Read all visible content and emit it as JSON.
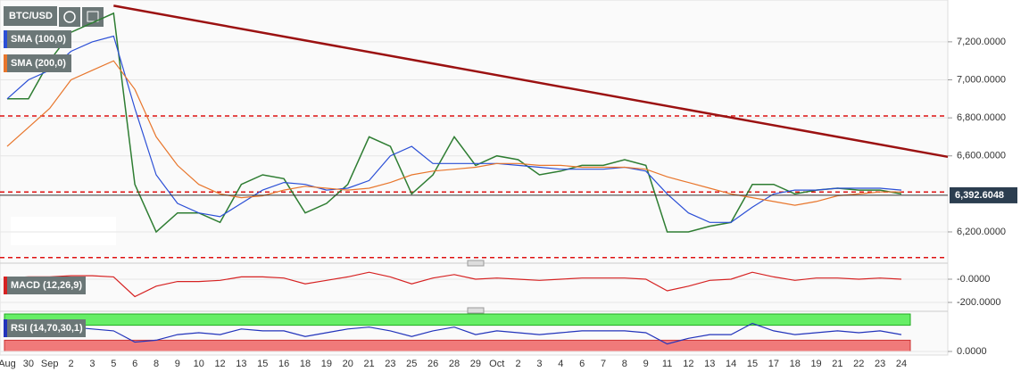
{
  "chart_data": [
    {
      "type": "line",
      "title": "BTC/USD",
      "categories": [
        "Aug",
        "30",
        "Sep",
        "2",
        "3",
        "5",
        "6",
        "8",
        "9",
        "10",
        "12",
        "13",
        "15",
        "16",
        "18",
        "19",
        "20",
        "21",
        "23",
        "25",
        "26",
        "28",
        "29",
        "Oct",
        "2",
        "3",
        "4",
        "6",
        "7",
        "8",
        "9",
        "11",
        "12",
        "13",
        "14",
        "15",
        "17",
        "18",
        "19",
        "21",
        "22",
        "23",
        "24"
      ],
      "series": [
        {
          "name": "BTC/USD",
          "color": "#2e7d32",
          "values": [
            6900,
            6900,
            7100,
            7250,
            7300,
            7350,
            6450,
            6200,
            6300,
            6300,
            6250,
            6450,
            6500,
            6480,
            6300,
            6350,
            6450,
            6700,
            6650,
            6400,
            6500,
            6700,
            6550,
            6600,
            6580,
            6500,
            6520,
            6550,
            6550,
            6580,
            6550,
            6200,
            6200,
            6230,
            6250,
            6450,
            6450,
            6400,
            6420,
            6430,
            6420,
            6420,
            6400
          ]
        },
        {
          "name": "SMA (100,0)",
          "color": "#2b4fd6",
          "values": [
            6900,
            7000,
            7050,
            7150,
            7200,
            7230,
            6850,
            6500,
            6350,
            6300,
            6280,
            6350,
            6420,
            6460,
            6450,
            6420,
            6430,
            6470,
            6600,
            6650,
            6560,
            6560,
            6560,
            6560,
            6550,
            6540,
            6530,
            6530,
            6530,
            6540,
            6520,
            6400,
            6300,
            6250,
            6250,
            6330,
            6400,
            6420,
            6420,
            6430,
            6430,
            6430,
            6420
          ]
        },
        {
          "name": "SMA (200,0)",
          "color": "#e8762c",
          "values": [
            6650,
            6750,
            6850,
            7000,
            7050,
            7100,
            6950,
            6700,
            6550,
            6450,
            6400,
            6380,
            6390,
            6420,
            6440,
            6430,
            6420,
            6430,
            6460,
            6500,
            6520,
            6530,
            6540,
            6560,
            6560,
            6550,
            6550,
            6540,
            6540,
            6540,
            6530,
            6490,
            6460,
            6430,
            6400,
            6380,
            6360,
            6340,
            6360,
            6390,
            6400,
            6410,
            6410
          ]
        }
      ],
      "trendline": [
        7390,
        6595
      ],
      "trendline_color": "#9b1111",
      "levels": [
        6810,
        6410,
        6065
      ],
      "level_color": "#dd1111",
      "price_label": {
        "value": 6392.6048,
        "label": "6,392.6048"
      },
      "ylim": [
        6045,
        7420
      ],
      "yticks": [
        {
          "value": 7200,
          "label": "7,200.0000"
        },
        {
          "value": 7000,
          "label": "7,000.0000"
        },
        {
          "value": 6800,
          "label": "6,800.0000"
        },
        {
          "value": 6600,
          "label": "6,600.0000"
        },
        {
          "value": 6200,
          "label": "6,200.0000"
        }
      ],
      "grid": true
    },
    {
      "type": "line",
      "series": [
        {
          "name": "MACD (12,26,9)",
          "color": "#d62222",
          "values": [
            10,
            20,
            20,
            30,
            30,
            20,
            -150,
            -60,
            -20,
            -20,
            -10,
            20,
            20,
            10,
            -40,
            -10,
            20,
            60,
            20,
            -40,
            10,
            40,
            0,
            10,
            0,
            -10,
            0,
            10,
            10,
            10,
            0,
            -100,
            -60,
            -10,
            0,
            60,
            20,
            -10,
            10,
            10,
            0,
            10,
            0
          ]
        }
      ],
      "ylim": [
        -246,
        123
      ],
      "yticks": [
        {
          "value": 0,
          "label": "-0.0000"
        },
        {
          "value": -200,
          "label": "-200.0000"
        }
      ],
      "grid": true
    },
    {
      "type": "line",
      "series": [
        {
          "name": "RSI (14,70,30,1)",
          "color": "#2233bb",
          "values": [
            55,
            50,
            60,
            65,
            60,
            55,
            25,
            30,
            45,
            50,
            45,
            60,
            55,
            55,
            40,
            50,
            60,
            65,
            55,
            40,
            55,
            65,
            45,
            55,
            50,
            45,
            50,
            55,
            55,
            55,
            50,
            20,
            35,
            45,
            45,
            75,
            55,
            45,
            50,
            55,
            50,
            55,
            45
          ]
        }
      ],
      "overbought": 70,
      "oversold": 30,
      "overbought_color": "#66ee66",
      "oversold_color": "#f07a7a",
      "ylim": [
        0,
        100
      ],
      "yticks": [
        {
          "value": 0,
          "label": "0.0000"
        }
      ],
      "grid": true
    }
  ]
}
